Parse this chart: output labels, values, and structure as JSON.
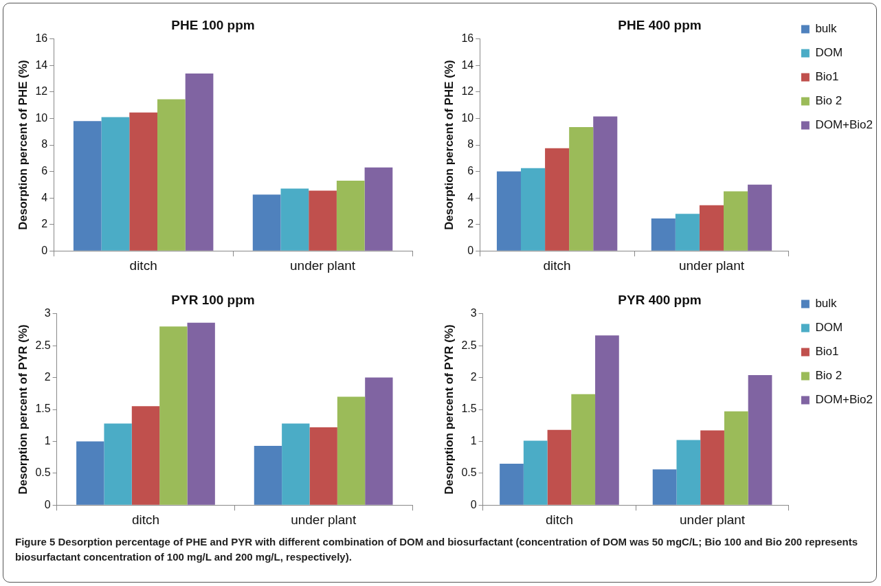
{
  "chart_data": [
    {
      "type": "bar",
      "title": "PHE 100 ppm",
      "ylabel": "Desorption percent of PHE (%)",
      "categories": [
        "ditch",
        "under plant"
      ],
      "ylim": [
        0,
        16
      ],
      "yticks": [
        0,
        2,
        4,
        6,
        8,
        10,
        12,
        14,
        16
      ],
      "legend": false,
      "series": [
        {
          "color": "#4f81bd",
          "values": [
            9.8,
            4.25
          ]
        },
        {
          "color": "#4bacc6",
          "values": [
            10.1,
            4.7
          ]
        },
        {
          "color": "#c0504d",
          "values": [
            10.45,
            4.55
          ]
        },
        {
          "color": "#9bbb59",
          "values": [
            11.45,
            5.3
          ]
        },
        {
          "color": "#8064a2",
          "values": [
            13.4,
            6.3
          ]
        }
      ]
    },
    {
      "type": "bar",
      "title": "PHE 400 ppm",
      "ylabel": "Desorption percent of PHE (%)",
      "categories": [
        "ditch",
        "under plant"
      ],
      "ylim": [
        0,
        16
      ],
      "yticks": [
        0,
        2,
        4,
        6,
        8,
        10,
        12,
        14,
        16
      ],
      "legend": "right",
      "series": [
        {
          "name": "bulk",
          "color": "#4f81bd",
          "values": [
            6.0,
            2.45
          ]
        },
        {
          "name": "DOM",
          "color": "#4bacc6",
          "values": [
            6.25,
            2.8
          ]
        },
        {
          "name": "Bio1",
          "color": "#c0504d",
          "values": [
            7.75,
            3.45
          ]
        },
        {
          "name": "Bio 2",
          "color": "#9bbb59",
          "values": [
            9.35,
            4.5
          ]
        },
        {
          "name": "DOM+Bio2",
          "color": "#8064a2",
          "values": [
            10.15,
            5.0
          ]
        }
      ]
    },
    {
      "type": "bar",
      "title": "PYR 100 ppm",
      "ylabel": "Desorption percent of PYR (%)",
      "categories": [
        "ditch",
        "under plant"
      ],
      "ylim": [
        0,
        3
      ],
      "yticks": [
        0,
        0.5,
        1,
        1.5,
        2,
        2.5,
        3
      ],
      "legend": false,
      "series": [
        {
          "color": "#4f81bd",
          "values": [
            1.0,
            0.93
          ]
        },
        {
          "color": "#4bacc6",
          "values": [
            1.28,
            1.28
          ]
        },
        {
          "color": "#c0504d",
          "values": [
            1.55,
            1.22
          ]
        },
        {
          "color": "#9bbb59",
          "values": [
            2.8,
            1.7
          ]
        },
        {
          "color": "#8064a2",
          "values": [
            2.86,
            2.0
          ]
        }
      ]
    },
    {
      "type": "bar",
      "title": "PYR 400 ppm",
      "ylabel": "Desorption percent of PYR (%)",
      "categories": [
        "ditch",
        "under plant"
      ],
      "ylim": [
        0,
        3
      ],
      "yticks": [
        0,
        0.5,
        1,
        1.5,
        2,
        2.5,
        3
      ],
      "legend": "right",
      "annotations": [
        "Figure 5 Desorption percentage of PHE and PYR with different combination of DOM and biosurfactant (concentration of DOM was 50 mgC/L; Bio 100 and Bio 200 represents biosurfactant concentration of 100 mg/L and 200 mg/L, respectively)."
      ],
      "series": [
        {
          "name": "bulk",
          "color": "#4f81bd",
          "values": [
            0.65,
            0.56
          ]
        },
        {
          "name": "DOM",
          "color": "#4bacc6",
          "values": [
            1.01,
            1.02
          ]
        },
        {
          "name": "Bio1",
          "color": "#c0504d",
          "values": [
            1.18,
            1.17
          ]
        },
        {
          "name": "Bio 2",
          "color": "#9bbb59",
          "values": [
            1.74,
            1.47
          ]
        },
        {
          "name": "DOM+Bio2",
          "color": "#8064a2",
          "values": [
            2.66,
            2.04
          ]
        }
      ]
    }
  ]
}
